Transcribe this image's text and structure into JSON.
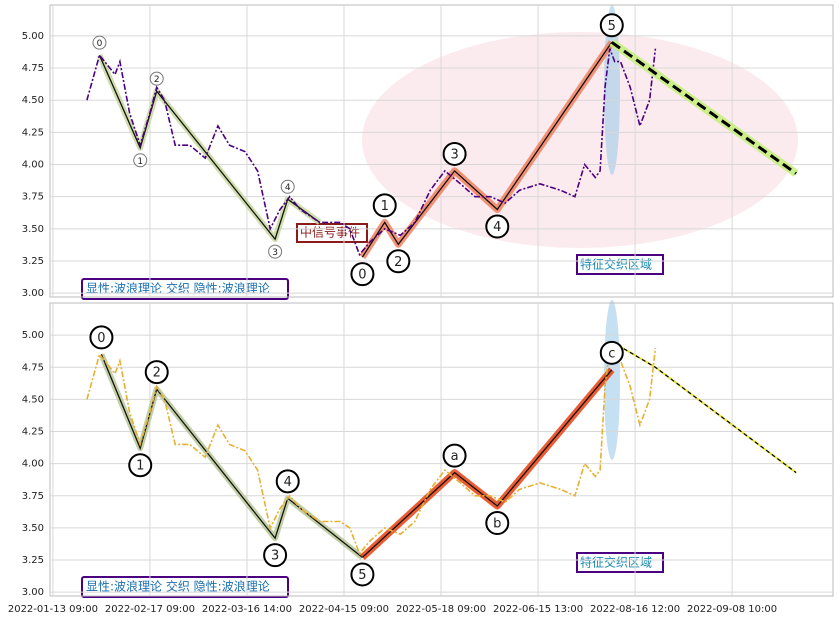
{
  "chart_data": [
    {
      "type": "line",
      "ylim": [
        2.97,
        5.24
      ],
      "yticks": [
        {
          "value": 3,
          "label": "3.00"
        },
        {
          "value": 3.25,
          "label": "3.25"
        },
        {
          "value": 3.5,
          "label": "3.50"
        },
        {
          "value": 3.75,
          "label": "3.75"
        },
        {
          "value": 4,
          "label": "4.00"
        },
        {
          "value": 4.25,
          "label": "4.25"
        },
        {
          "value": 4.5,
          "label": "4.50"
        },
        {
          "value": 4.75,
          "label": "4.75"
        },
        {
          "value": 5,
          "label": "5.00"
        }
      ],
      "xlim": [
        -3,
        804
      ],
      "xticks": [
        0,
        100,
        200,
        300,
        400,
        500,
        600,
        700
      ],
      "grid": true,
      "x": [
        35,
        48,
        64,
        69,
        79,
        90,
        100,
        107,
        115,
        126,
        141,
        157,
        170,
        182,
        198,
        211,
        224,
        234,
        244,
        255,
        275,
        296,
        306,
        316,
        327,
        342,
        358,
        373,
        389,
        404,
        420,
        435,
        451,
        466,
        481,
        502,
        523,
        538,
        548,
        559,
        564,
        569,
        574,
        579,
        585,
        595,
        605,
        615,
        621
      ],
      "series": [
        {
          "color": "#4b0082",
          "values": [
            4.5,
            4.85,
            4.7,
            4.8,
            4.4,
            4.15,
            4.4,
            4.6,
            4.5,
            4.15,
            4.15,
            4.05,
            4.3,
            4.15,
            4.1,
            3.95,
            3.5,
            3.65,
            3.75,
            3.65,
            3.55,
            3.55,
            3.5,
            3.3,
            3.4,
            3.5,
            3.45,
            3.55,
            3.8,
            3.95,
            3.85,
            3.75,
            3.75,
            3.7,
            3.8,
            3.85,
            3.8,
            3.75,
            4.0,
            3.9,
            3.95,
            4.6,
            4.9,
            4.8,
            4.8,
            4.6,
            4.3,
            4.5,
            4.9
          ]
        }
      ],
      "waves": [
        {
          "color": "#c8d8a0",
          "x": [
            48,
            90,
            107,
            229,
            242,
            275
          ],
          "values": [
            4.85,
            4.13,
            4.57,
            3.42,
            3.73,
            3.55
          ],
          "labels": [
            "0",
            "1",
            "2",
            "3",
            "4",
            null
          ]
        },
        {
          "color": "#f08060",
          "x": [
            319,
            342,
            356,
            414,
            458,
            576
          ],
          "values": [
            3.28,
            3.55,
            3.38,
            3.95,
            3.65,
            4.95
          ],
          "labels": [
            "0",
            "1",
            "2",
            "3",
            "4",
            "5"
          ]
        }
      ],
      "projection": {
        "x": [
          576,
          766
        ],
        "values": [
          4.95,
          3.93
        ],
        "color": "#c8f080"
      },
      "annotations": [
        "显性:波浪理论 交织 隐性:波浪理论",
        "中信号事件",
        "特征交织区域"
      ]
    },
    {
      "type": "line",
      "ylim": [
        2.97,
        5.25
      ],
      "yticks": [
        {
          "value": 3,
          "label": "3.00"
        },
        {
          "value": 3.25,
          "label": "3.25"
        },
        {
          "value": 3.5,
          "label": "3.50"
        },
        {
          "value": 3.75,
          "label": "3.75"
        },
        {
          "value": 4,
          "label": "4.00"
        },
        {
          "value": 4.25,
          "label": "4.25"
        },
        {
          "value": 4.5,
          "label": "4.50"
        },
        {
          "value": 4.75,
          "label": "4.75"
        },
        {
          "value": 5,
          "label": "5.00"
        }
      ],
      "xlim": [
        -3,
        804
      ],
      "xticks": [
        {
          "value": 0,
          "label": "2022-01-13 09:00"
        },
        {
          "value": 100,
          "label": "2022-02-17 09:00"
        },
        {
          "value": 200,
          "label": "2022-03-16 14:00"
        },
        {
          "value": 300,
          "label": "2022-04-15 09:00"
        },
        {
          "value": 400,
          "label": "2022-05-18 09:00"
        },
        {
          "value": 500,
          "label": "2022-06-15 13:00"
        },
        {
          "value": 600,
          "label": "2022-08-16 12:00"
        },
        {
          "value": 700,
          "label": "2022-09-08 10:00"
        }
      ],
      "grid": true,
      "x": [
        35,
        48,
        64,
        69,
        79,
        90,
        100,
        107,
        115,
        126,
        141,
        157,
        170,
        182,
        198,
        211,
        224,
        234,
        244,
        255,
        275,
        296,
        306,
        316,
        327,
        342,
        358,
        373,
        389,
        404,
        420,
        435,
        451,
        466,
        481,
        502,
        523,
        538,
        548,
        559,
        564,
        569,
        574,
        579,
        585,
        595,
        605,
        615,
        621
      ],
      "series": [
        {
          "color": "#e8b030",
          "values": [
            4.5,
            4.85,
            4.7,
            4.8,
            4.4,
            4.15,
            4.4,
            4.6,
            4.5,
            4.15,
            4.15,
            4.05,
            4.3,
            4.15,
            4.1,
            3.95,
            3.5,
            3.65,
            3.75,
            3.65,
            3.55,
            3.55,
            3.5,
            3.3,
            3.4,
            3.5,
            3.45,
            3.55,
            3.8,
            3.95,
            3.85,
            3.75,
            3.75,
            3.7,
            3.8,
            3.85,
            3.8,
            3.75,
            4.0,
            3.9,
            3.95,
            4.6,
            4.9,
            4.8,
            4.8,
            4.6,
            4.3,
            4.5,
            4.9
          ]
        }
      ],
      "waves": [
        {
          "color": "#b8c898",
          "x": [
            50,
            90,
            107,
            229,
            242,
            319
          ],
          "values": [
            4.85,
            4.12,
            4.58,
            3.42,
            3.73,
            3.27
          ],
          "labels": [
            "0",
            "1",
            "2",
            "3",
            "4",
            "5"
          ]
        },
        {
          "color": "#e84010",
          "x": [
            319,
            414,
            458,
            576
          ],
          "values": [
            3.27,
            3.93,
            3.67,
            4.73
          ],
          "labels": [
            null,
            "a",
            "b",
            "c"
          ]
        }
      ],
      "projection": {
        "x": [
          576,
          621,
          766
        ],
        "values": [
          4.95,
          4.75,
          3.93
        ],
        "color": "#e8e020"
      },
      "annotations": [
        "显性:波浪理论 交织 隐性:波浪理论",
        "特征交织区域"
      ]
    }
  ]
}
